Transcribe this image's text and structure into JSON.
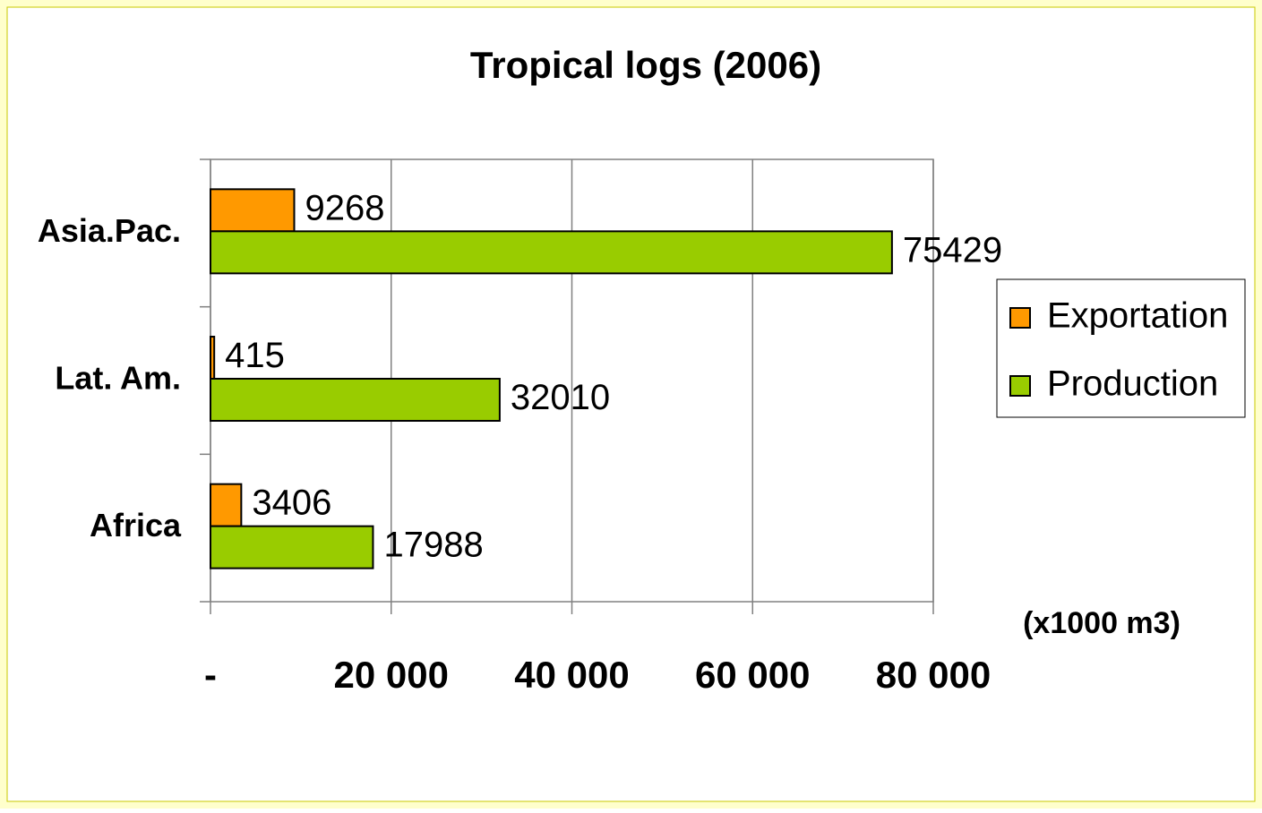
{
  "chart_data": {
    "type": "hbar",
    "title": "Tropical logs (2006)",
    "categories": [
      "Asia.Pac.",
      "Lat. Am.",
      "Africa"
    ],
    "series": [
      {
        "name": "Exportation",
        "color": "#ff9900",
        "values": [
          9268,
          415,
          3406
        ]
      },
      {
        "name": "Production",
        "color": "#99cc00",
        "values": [
          75429,
          32010,
          17988
        ]
      }
    ],
    "x_label": "(x1000 m3)",
    "xlim": [
      0,
      80000
    ],
    "xticks": [
      {
        "value": 0,
        "label": "-"
      },
      {
        "value": 20000,
        "label": "20 000"
      },
      {
        "value": 40000,
        "label": "40 000"
      },
      {
        "value": 60000,
        "label": "60 000"
      },
      {
        "value": 80000,
        "label": "80 000"
      }
    ],
    "grid": true,
    "legend": "right"
  }
}
